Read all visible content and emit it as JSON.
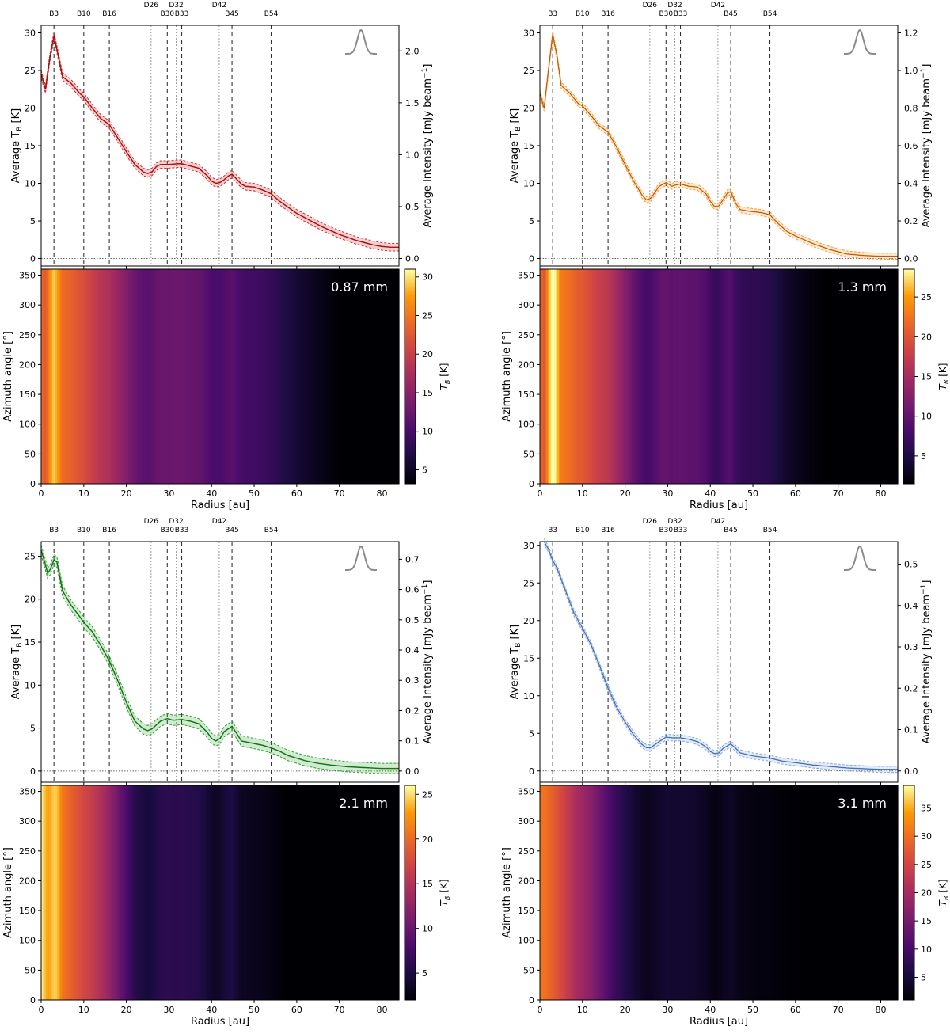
{
  "chart_data": {
    "type": "line",
    "shared": {
      "x_label": "Radius [au]",
      "x_range": [
        0,
        84
      ],
      "x_ticks": [
        0,
        10,
        20,
        30,
        40,
        50,
        60,
        70,
        80
      ],
      "profile_y_label_main": "Average T",
      "profile_y_label_sub": "B",
      "profile_y_label_unit": " [K]",
      "profile_y2_label_main": "Average Intensity [mJy beam",
      "profile_y2_label_sup": "−1",
      "profile_y2_label_close": "]",
      "map_y_label": "Azimuth angle [°]",
      "map_y_range": [
        0,
        360
      ],
      "map_y_ticks": [
        0,
        50,
        100,
        150,
        200,
        250,
        300,
        350
      ],
      "colorbar_label_main": "T",
      "colorbar_label_sub": "B",
      "colorbar_label_unit": " [K]",
      "colormap": "inferno",
      "features": [
        {
          "label": "B3",
          "r": 3,
          "style": "dashed"
        },
        {
          "label": "B10",
          "r": 10,
          "style": "dashed"
        },
        {
          "label": "B16",
          "r": 16,
          "style": "dashed"
        },
        {
          "label": "D26",
          "r": 25.8,
          "style": "dotted"
        },
        {
          "label": "B30",
          "r": 29.6,
          "style": "dashed"
        },
        {
          "label": "D32",
          "r": 31.7,
          "style": "dotted"
        },
        {
          "label": "B33",
          "r": 33,
          "style": "dashed"
        },
        {
          "label": "D42",
          "r": 41.8,
          "style": "dotted"
        },
        {
          "label": "B45",
          "r": 44.8,
          "style": "dashed"
        },
        {
          "label": "B54",
          "r": 54,
          "style": "dashed"
        }
      ]
    },
    "panels": [
      {
        "wavelength": "0.87 mm",
        "color": "#d62728",
        "profile_ylim": [
          -1,
          31
        ],
        "profile_yticks": [
          0,
          5,
          10,
          15,
          20,
          25,
          30
        ],
        "intensity_ticks": [
          {
            "label": "0.0",
            "tb": 0
          },
          {
            "label": "0.5",
            "tb": 6.9
          },
          {
            "label": "1.0",
            "tb": 13.8
          },
          {
            "label": "1.5",
            "tb": 20.7
          },
          {
            "label": "2.0",
            "tb": 27.6
          }
        ],
        "profile": [
          [
            0,
            24.5
          ],
          [
            1,
            22.5
          ],
          [
            2,
            26.5
          ],
          [
            3,
            29.6
          ],
          [
            4,
            27
          ],
          [
            5,
            24.2
          ],
          [
            7,
            23.3
          ],
          [
            9,
            22
          ],
          [
            10,
            21.5
          ],
          [
            12,
            20
          ],
          [
            14,
            18.6
          ],
          [
            16,
            17.8
          ],
          [
            18,
            16
          ],
          [
            20,
            14.2
          ],
          [
            22,
            12.5
          ],
          [
            24,
            11.5
          ],
          [
            25,
            11.3
          ],
          [
            26,
            11.5
          ],
          [
            27,
            12.2
          ],
          [
            28,
            12.5
          ],
          [
            30,
            12.5
          ],
          [
            32,
            12.6
          ],
          [
            33,
            12.6
          ],
          [
            35,
            12.3
          ],
          [
            37,
            12
          ],
          [
            39,
            11
          ],
          [
            40,
            10.3
          ],
          [
            41,
            10
          ],
          [
            42,
            10.1
          ],
          [
            43,
            10.5
          ],
          [
            44,
            11
          ],
          [
            44.8,
            11.2
          ],
          [
            46,
            10.5
          ],
          [
            47,
            9.9
          ],
          [
            48,
            9.6
          ],
          [
            50,
            9.5
          ],
          [
            52,
            9.1
          ],
          [
            54,
            8.6
          ],
          [
            56,
            7.6
          ],
          [
            58,
            6.8
          ],
          [
            60,
            6
          ],
          [
            62,
            5.4
          ],
          [
            64,
            4.8
          ],
          [
            66,
            4.2
          ],
          [
            68,
            3.7
          ],
          [
            70,
            3.2
          ],
          [
            72,
            2.8
          ],
          [
            74,
            2.4
          ],
          [
            76,
            2.1
          ],
          [
            78,
            1.8
          ],
          [
            80,
            1.6
          ],
          [
            82,
            1.5
          ],
          [
            84,
            1.5
          ]
        ],
        "band": 0.5,
        "colorbar_range": [
          3.2,
          31
        ],
        "colorbar_ticks": [
          5,
          10,
          15,
          20,
          25,
          30
        ],
        "map_range": [
          3.2,
          31
        ]
      },
      {
        "wavelength": "1.3 mm",
        "color": "#ff9933",
        "profile_ylim": [
          -1,
          31
        ],
        "profile_yticks": [
          0,
          5,
          10,
          15,
          20,
          25,
          30
        ],
        "intensity_ticks": [
          {
            "label": "0.0",
            "tb": 0
          },
          {
            "label": "0.2",
            "tb": 5
          },
          {
            "label": "0.4",
            "tb": 10
          },
          {
            "label": "0.6",
            "tb": 15
          },
          {
            "label": "0.8",
            "tb": 20
          },
          {
            "label": "1.0",
            "tb": 25
          },
          {
            "label": "1.2",
            "tb": 30
          }
        ],
        "profile": [
          [
            0,
            22
          ],
          [
            1,
            20
          ],
          [
            2,
            25
          ],
          [
            3,
            29.8
          ],
          [
            4,
            27
          ],
          [
            5,
            23
          ],
          [
            7,
            22
          ],
          [
            9,
            20.6
          ],
          [
            10,
            20.3
          ],
          [
            12,
            19
          ],
          [
            14,
            17.6
          ],
          [
            16,
            16.8
          ],
          [
            18,
            14.8
          ],
          [
            20,
            12.5
          ],
          [
            22,
            10.3
          ],
          [
            24,
            8.4
          ],
          [
            25,
            7.8
          ],
          [
            26,
            8
          ],
          [
            27,
            8.8
          ],
          [
            28,
            9.6
          ],
          [
            29.6,
            10.1
          ],
          [
            31,
            9.6
          ],
          [
            32,
            9.8
          ],
          [
            33,
            9.9
          ],
          [
            35,
            9.6
          ],
          [
            37,
            9.5
          ],
          [
            39,
            8.6
          ],
          [
            40,
            7.6
          ],
          [
            41,
            6.9
          ],
          [
            42,
            7
          ],
          [
            43,
            7.8
          ],
          [
            44,
            8.7
          ],
          [
            44.8,
            8.9
          ],
          [
            46,
            7.3
          ],
          [
            47,
            6.5
          ],
          [
            49,
            6.3
          ],
          [
            52,
            6.1
          ],
          [
            54,
            5.8
          ],
          [
            56,
            4.6
          ],
          [
            58,
            3.6
          ],
          [
            60,
            3
          ],
          [
            62,
            2.5
          ],
          [
            64,
            2
          ],
          [
            66,
            1.6
          ],
          [
            68,
            1.2
          ],
          [
            70,
            0.9
          ],
          [
            72,
            0.6
          ],
          [
            76,
            0.4
          ],
          [
            80,
            0.3
          ],
          [
            84,
            0.3
          ]
        ],
        "band": 0.4,
        "colorbar_range": [
          1.5,
          28.5
        ],
        "colorbar_ticks": [
          5,
          10,
          15,
          20,
          25
        ],
        "map_range": [
          1.5,
          28.5
        ]
      },
      {
        "wavelength": "2.1 mm",
        "color": "#2ca02c",
        "profile_ylim": [
          -1.3,
          26.7
        ],
        "profile_yticks": [
          0,
          5,
          10,
          15,
          20,
          25
        ],
        "intensity_ticks": [
          {
            "label": "0.0",
            "tb": 0
          },
          {
            "label": "0.1",
            "tb": 3.52
          },
          {
            "label": "0.2",
            "tb": 7.04
          },
          {
            "label": "0.3",
            "tb": 10.56
          },
          {
            "label": "0.4",
            "tb": 14.08
          },
          {
            "label": "0.5",
            "tb": 17.6
          },
          {
            "label": "0.6",
            "tb": 21.12
          },
          {
            "label": "0.7",
            "tb": 24.64
          }
        ],
        "profile": [
          [
            0,
            25.7
          ],
          [
            1,
            24
          ],
          [
            1.5,
            23
          ],
          [
            2.2,
            23.5
          ],
          [
            3,
            24.6
          ],
          [
            3.7,
            24.3
          ],
          [
            5,
            21
          ],
          [
            7,
            19.3
          ],
          [
            9,
            18
          ],
          [
            10,
            17.3
          ],
          [
            12,
            16.2
          ],
          [
            14,
            14.6
          ],
          [
            16,
            12.8
          ],
          [
            18,
            10.5
          ],
          [
            20,
            8
          ],
          [
            22,
            5.8
          ],
          [
            24,
            4.9
          ],
          [
            25,
            4.7
          ],
          [
            26,
            4.9
          ],
          [
            28,
            5.8
          ],
          [
            29.6,
            6.1
          ],
          [
            31,
            5.9
          ],
          [
            33,
            6
          ],
          [
            35,
            5.8
          ],
          [
            37,
            5.5
          ],
          [
            39,
            4.5
          ],
          [
            40,
            3.8
          ],
          [
            41,
            3.5
          ],
          [
            42,
            3.8
          ],
          [
            43,
            4.6
          ],
          [
            44.8,
            5.2
          ],
          [
            46,
            4.3
          ],
          [
            47,
            3.5
          ],
          [
            49,
            3.3
          ],
          [
            52,
            3
          ],
          [
            54,
            2.7
          ],
          [
            56,
            2.3
          ],
          [
            58,
            1.8
          ],
          [
            60,
            1.5
          ],
          [
            62,
            1.2
          ],
          [
            65,
            0.9
          ],
          [
            68,
            0.7
          ],
          [
            72,
            0.5
          ],
          [
            76,
            0.4
          ],
          [
            80,
            0.3
          ],
          [
            84,
            0.3
          ]
        ],
        "band": 0.6,
        "colorbar_range": [
          2,
          26
        ],
        "colorbar_ticks": [
          5,
          10,
          15,
          20,
          25
        ],
        "map_range": [
          2,
          26
        ]
      },
      {
        "wavelength": "3.1 mm",
        "color": "#7fa8e8",
        "profile_ylim": [
          -1.5,
          30.5
        ],
        "profile_yticks": [
          0,
          5,
          10,
          15,
          20,
          25,
          30
        ],
        "intensity_ticks": [
          {
            "label": "0.0",
            "tb": 0
          },
          {
            "label": "0.1",
            "tb": 5.5
          },
          {
            "label": "0.2",
            "tb": 11
          },
          {
            "label": "0.3",
            "tb": 16.5
          },
          {
            "label": "0.4",
            "tb": 22
          },
          {
            "label": "0.5",
            "tb": 27.5
          }
        ],
        "profile": [
          [
            1,
            30.5
          ],
          [
            2,
            29.5
          ],
          [
            3,
            28
          ],
          [
            4,
            27
          ],
          [
            6,
            24
          ],
          [
            8,
            21
          ],
          [
            10,
            19
          ],
          [
            12,
            16.8
          ],
          [
            14,
            14
          ],
          [
            16,
            11
          ],
          [
            18,
            8.5
          ],
          [
            20,
            6.5
          ],
          [
            22,
            4.8
          ],
          [
            24,
            3.5
          ],
          [
            25,
            3.1
          ],
          [
            26,
            3.1
          ],
          [
            28,
            3.9
          ],
          [
            29.6,
            4.5
          ],
          [
            31,
            4.4
          ],
          [
            33,
            4.4
          ],
          [
            35,
            4.2
          ],
          [
            37,
            3.9
          ],
          [
            39,
            3.2
          ],
          [
            40,
            2.6
          ],
          [
            41,
            2.3
          ],
          [
            42,
            2.4
          ],
          [
            43,
            3
          ],
          [
            44.8,
            3.6
          ],
          [
            46,
            3
          ],
          [
            47,
            2.4
          ],
          [
            50,
            2
          ],
          [
            54,
            1.7
          ],
          [
            57,
            1.3
          ],
          [
            60,
            1.1
          ],
          [
            64,
            0.8
          ],
          [
            68,
            0.6
          ],
          [
            72,
            0.4
          ],
          [
            76,
            0.3
          ],
          [
            80,
            0.2
          ],
          [
            84,
            0.2
          ]
        ],
        "band": 0.4,
        "colorbar_range": [
          1,
          39
        ],
        "colorbar_ticks": [
          5,
          10,
          15,
          20,
          25,
          30,
          35
        ],
        "map_range": [
          1,
          39
        ]
      }
    ]
  }
}
